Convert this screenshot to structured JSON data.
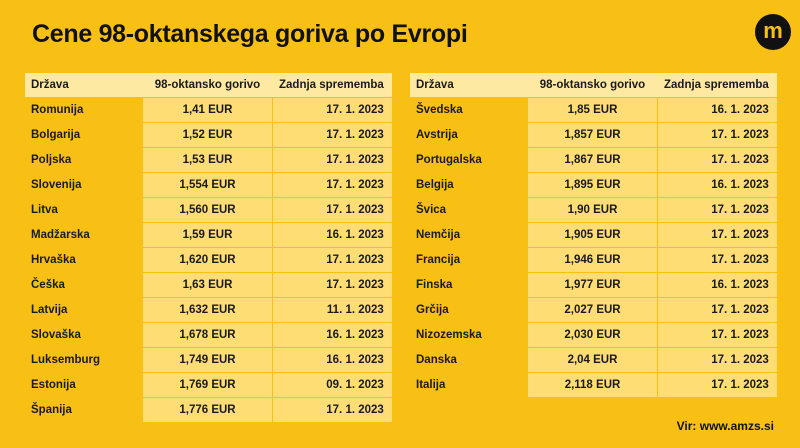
{
  "title": "Cene 98-oktanskega goriva po Evropi",
  "logo_letter": "m",
  "headers": {
    "country": "Država",
    "price": "98-oktansko gorivo",
    "date": "Zadnja sprememba"
  },
  "left_rows": [
    {
      "country": "Romunija",
      "price": "1,41 EUR",
      "date": "17. 1. 2023"
    },
    {
      "country": "Bolgarija",
      "price": "1,52 EUR",
      "date": "17. 1. 2023"
    },
    {
      "country": "Poljska",
      "price": "1,53 EUR",
      "date": "17. 1. 2023"
    },
    {
      "country": "Slovenija",
      "price": "1,554 EUR",
      "date": "17. 1. 2023"
    },
    {
      "country": "Litva",
      "price": "1,560 EUR",
      "date": "17. 1. 2023"
    },
    {
      "country": "Madžarska",
      "price": "1,59 EUR",
      "date": "16. 1. 2023"
    },
    {
      "country": "Hrvaška",
      "price": "1,620 EUR",
      "date": "17. 1. 2023"
    },
    {
      "country": "Češka",
      "price": "1,63 EUR",
      "date": "17. 1. 2023"
    },
    {
      "country": "Latvija",
      "price": "1,632 EUR",
      "date": "11. 1. 2023"
    },
    {
      "country": "Slovaška",
      "price": "1,678 EUR",
      "date": "16. 1. 2023"
    },
    {
      "country": "Luksemburg",
      "price": "1,749 EUR",
      "date": "16. 1. 2023"
    },
    {
      "country": "Estonija",
      "price": "1,769 EUR",
      "date": "09. 1. 2023"
    },
    {
      "country": "Španija",
      "price": "1,776 EUR",
      "date": "17. 1. 2023"
    }
  ],
  "right_rows": [
    {
      "country": "Švedska",
      "price": "1,85 EUR",
      "date": "16. 1. 2023"
    },
    {
      "country": "Avstrija",
      "price": "1,857 EUR",
      "date": "17. 1. 2023"
    },
    {
      "country": "Portugalska",
      "price": "1,867 EUR",
      "date": "17. 1. 2023"
    },
    {
      "country": "Belgija",
      "price": "1,895 EUR",
      "date": "16. 1. 2023"
    },
    {
      "country": "Švica",
      "price": "1,90 EUR",
      "date": "17. 1. 2023"
    },
    {
      "country": "Nemčija",
      "price": "1,905 EUR",
      "date": "17. 1. 2023"
    },
    {
      "country": "Francija",
      "price": "1,946 EUR",
      "date": "17. 1. 2023"
    },
    {
      "country": "Finska",
      "price": "1,977 EUR",
      "date": "16. 1. 2023"
    },
    {
      "country": "Grčija",
      "price": "2,027 EUR",
      "date": "17. 1. 2023"
    },
    {
      "country": "Nizozemska",
      "price": "2,030 EUR",
      "date": "17. 1. 2023"
    },
    {
      "country": "Danska",
      "price": "2,04 EUR",
      "date": "17. 1. 2023"
    },
    {
      "country": "Italija",
      "price": "2,118 EUR",
      "date": "17. 1. 2023"
    }
  ],
  "source": "Vir: www.amzs.si"
}
